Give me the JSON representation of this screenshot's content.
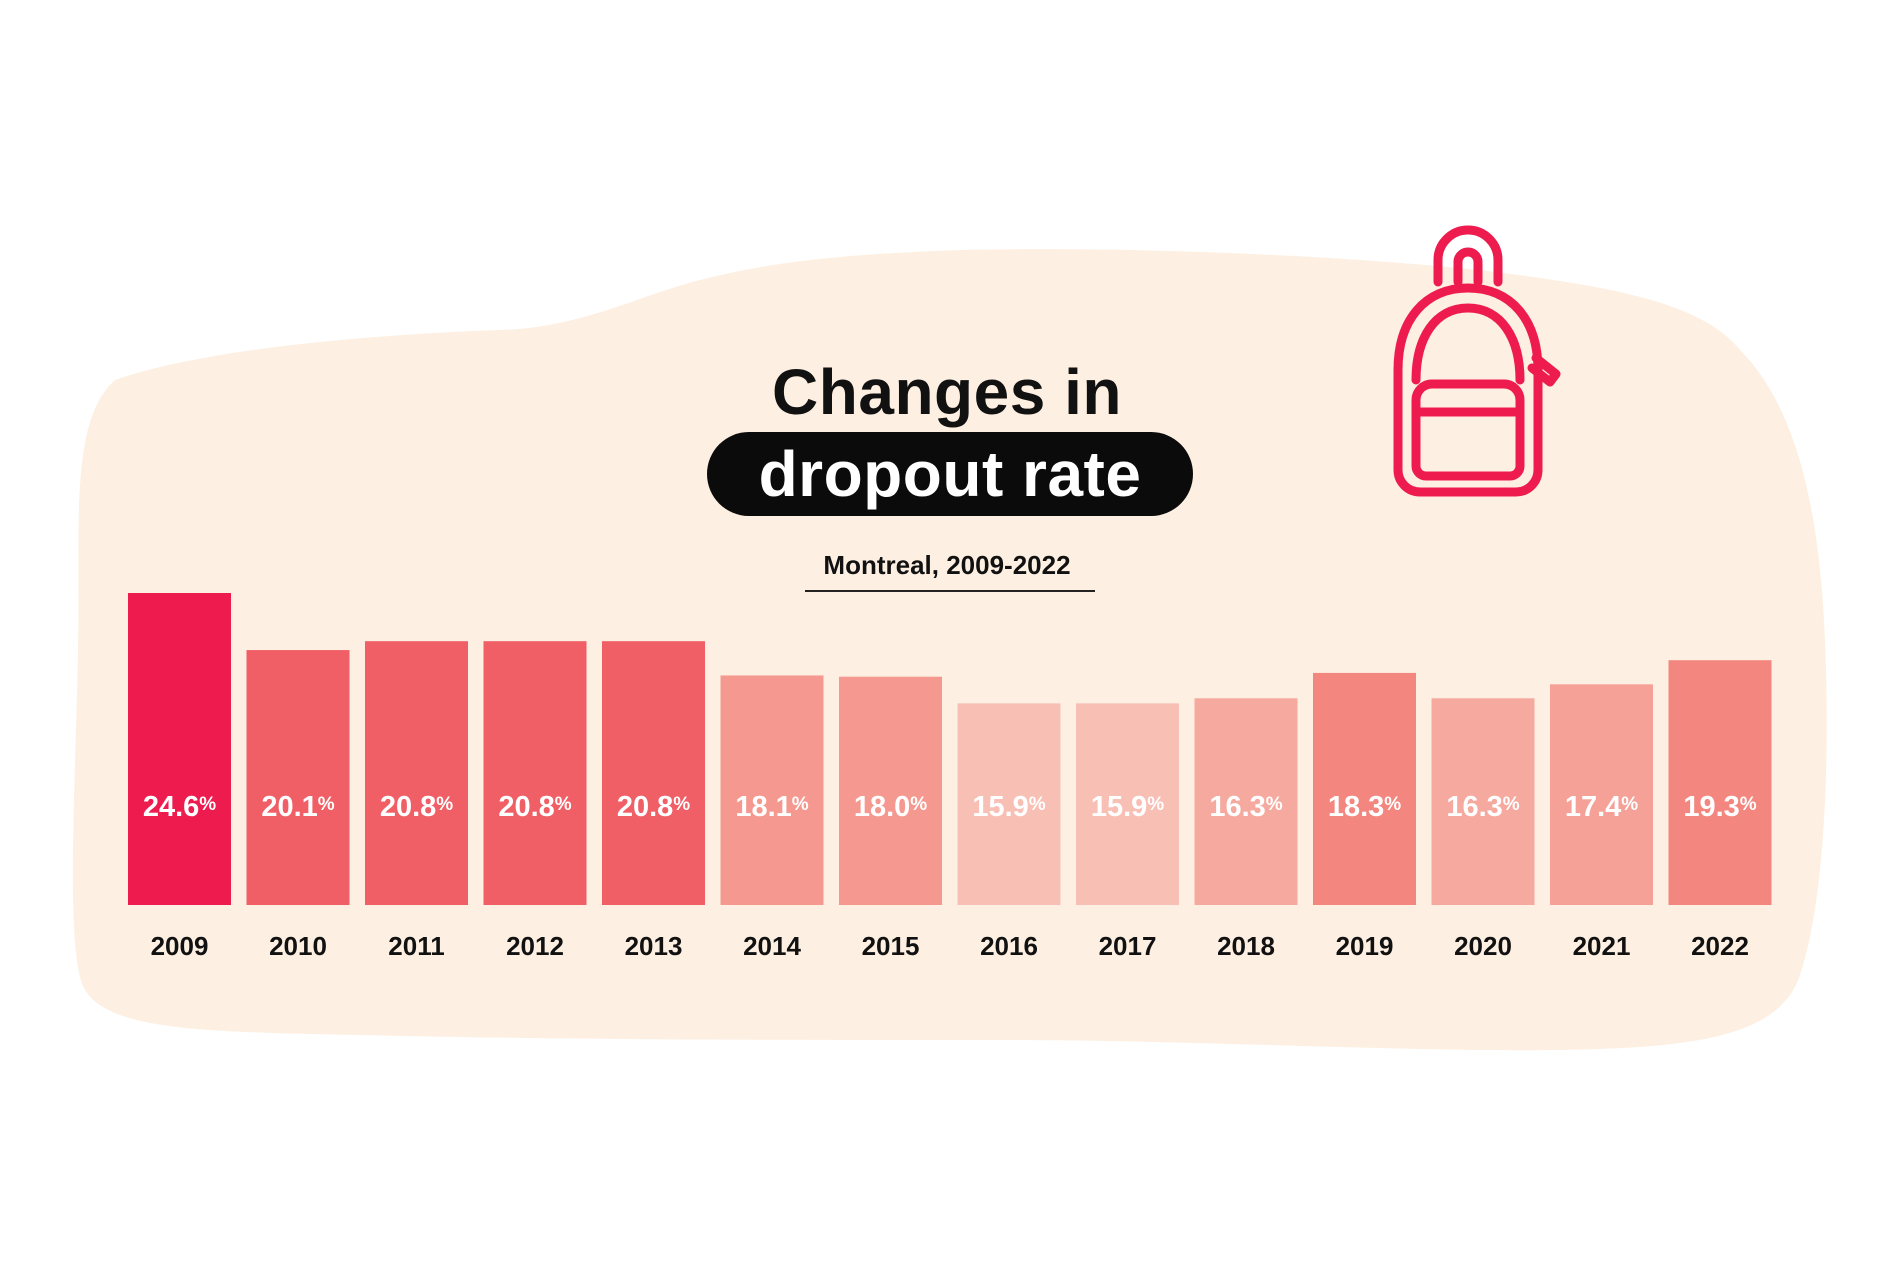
{
  "title": {
    "line1": "Changes in",
    "line2": "dropout rate"
  },
  "subtitle": "Montreal, 2009-2022",
  "icons": {
    "decoration": "backpack-icon"
  },
  "colors": {
    "background_blob": "#fdf0e2",
    "title_pill": "#0b0b0b",
    "accent": "#ee1c4e"
  },
  "chart_data": {
    "type": "bar",
    "title": "Changes in dropout rate",
    "subtitle": "Montreal, 2009-2022",
    "categories": [
      "2009",
      "2010",
      "2011",
      "2012",
      "2013",
      "2014",
      "2015",
      "2016",
      "2017",
      "2018",
      "2019",
      "2020",
      "2021",
      "2022"
    ],
    "values": [
      24.6,
      20.1,
      20.8,
      20.8,
      20.8,
      18.1,
      18.0,
      15.9,
      15.9,
      16.3,
      18.3,
      16.3,
      17.4,
      19.3
    ],
    "value_labels": [
      "24.6",
      "20.1",
      "20.8",
      "20.8",
      "20.8",
      "18.1",
      "18.0",
      "15.9",
      "15.9",
      "16.3",
      "18.3",
      "16.3",
      "17.4",
      "19.3"
    ],
    "unit": "%",
    "bar_colors": [
      "#ee1c4e",
      "#f05e66",
      "#f05e66",
      "#f05e66",
      "#f05e66",
      "#f59990",
      "#f59990",
      "#f8bfb5",
      "#f8bfb5",
      "#f6aa9f",
      "#f3867f",
      "#f6aa9f",
      "#f5a198",
      "#f3867f"
    ],
    "xlabel": "",
    "ylabel": "",
    "grid": false,
    "legend": "none"
  }
}
